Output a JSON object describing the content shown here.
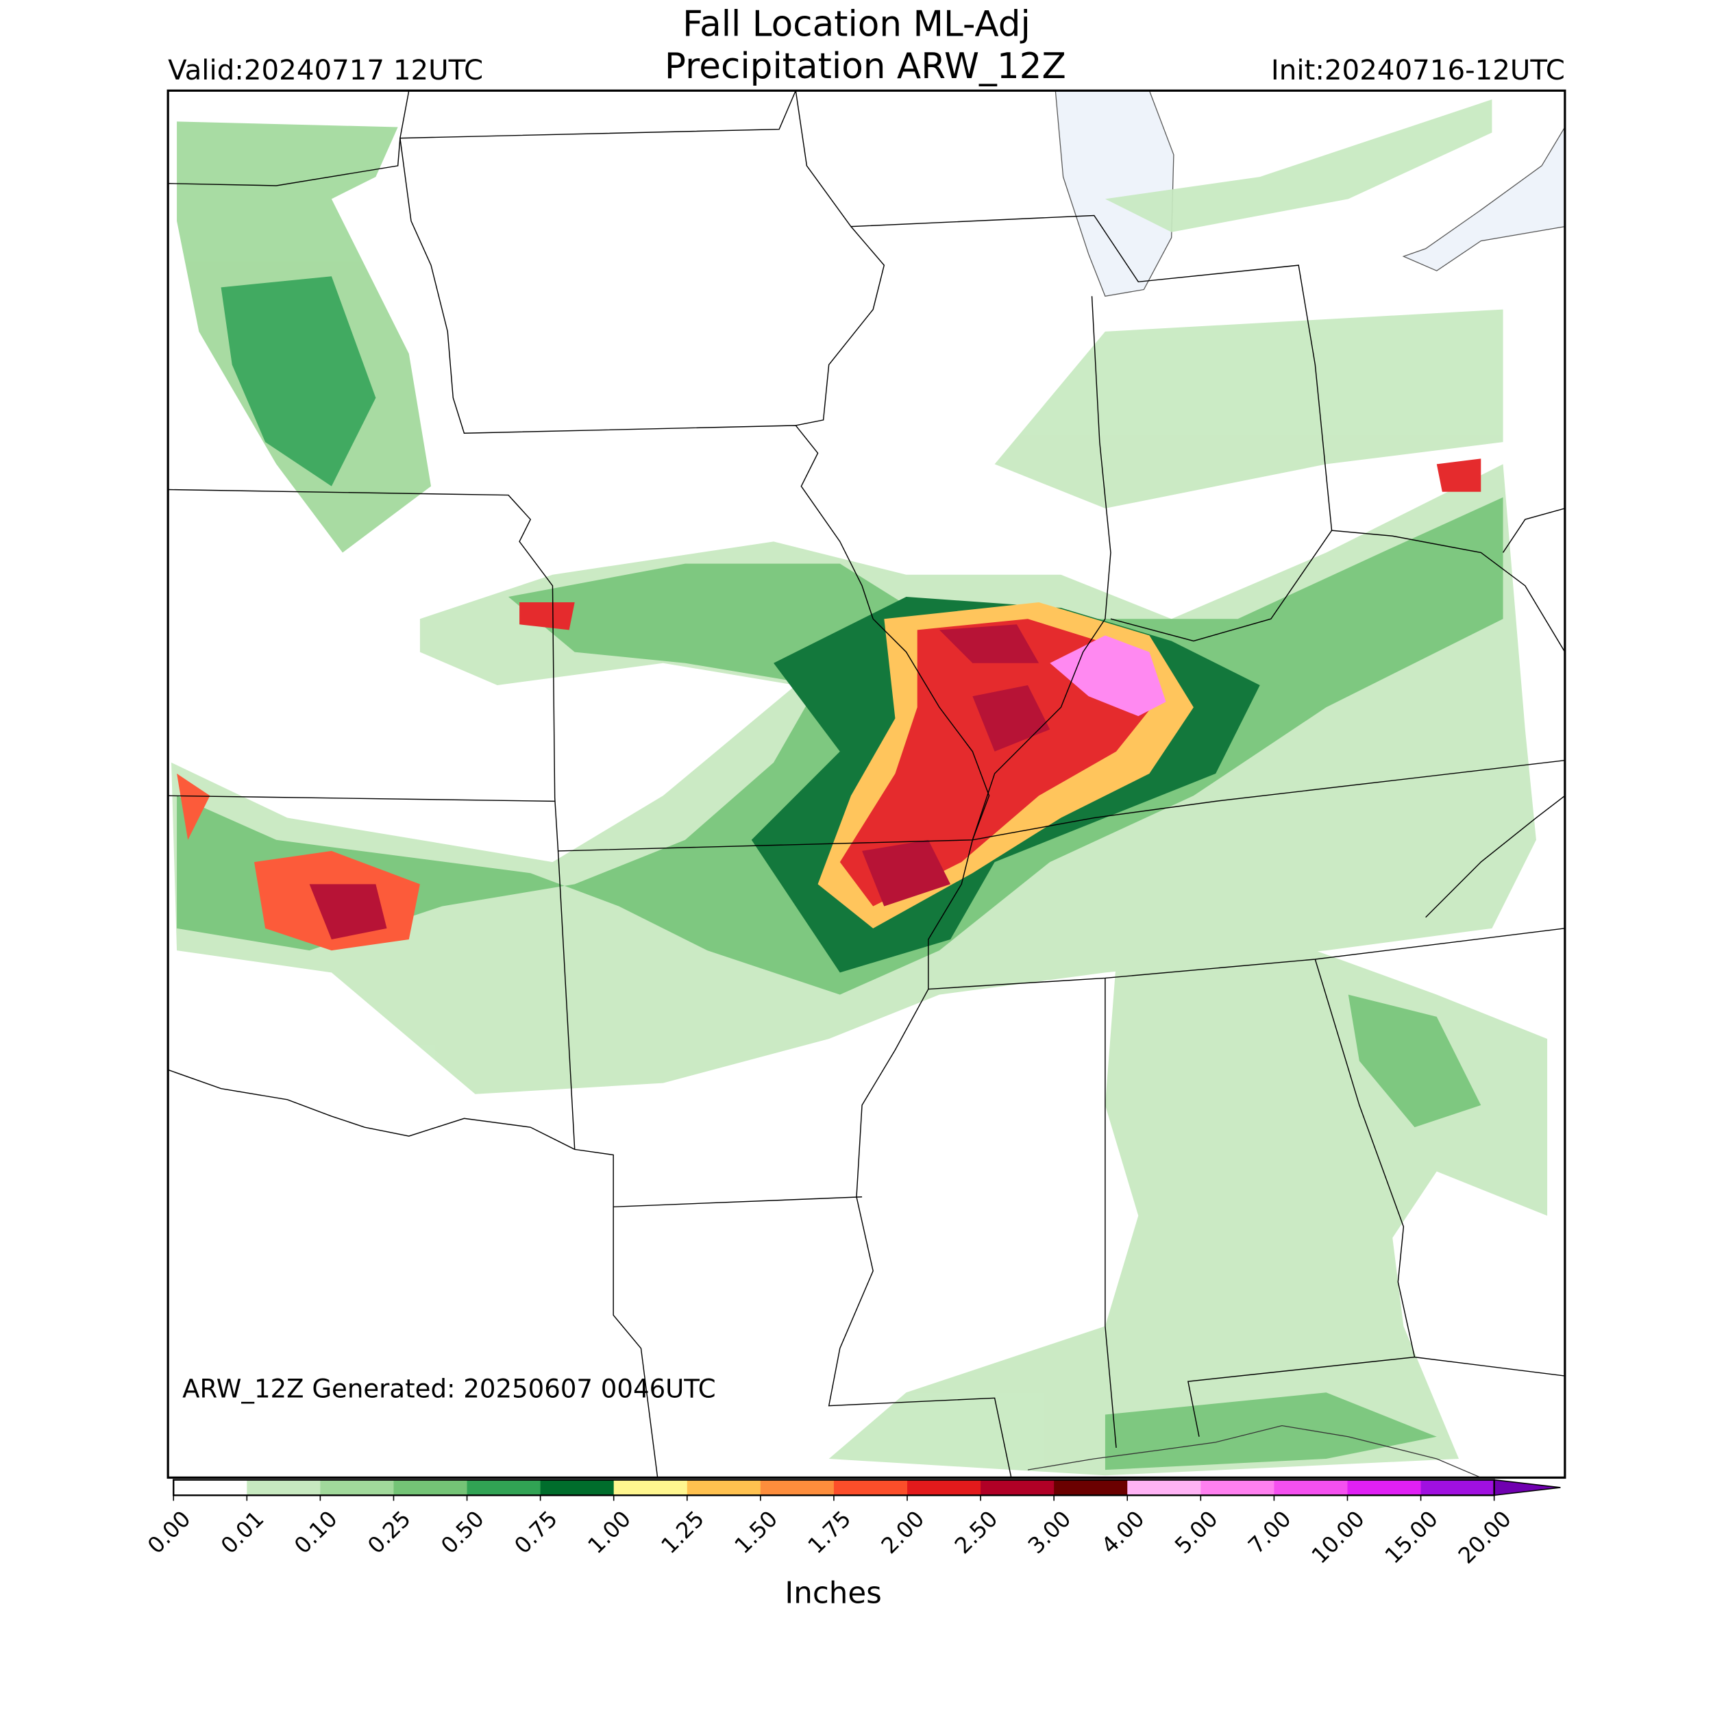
{
  "header": {
    "title_lines": [
      "Fall Location ML-Adj",
      "Precipitation ARW_12Z"
    ],
    "valid": "Valid:20240717 12UTC",
    "init": "Init:20240716-12UTC"
  },
  "annotation": "ARW_12Z Generated: 20250607 0046UTC",
  "colorbar": {
    "label": "Inches",
    "ticks": [
      {
        "value": 0,
        "label": "0.00"
      },
      {
        "value": 0.01,
        "label": "0.01"
      },
      {
        "value": 0.1,
        "label": "0.10"
      },
      {
        "value": 0.25,
        "label": "0.25"
      },
      {
        "value": 0.5,
        "label": "0.50"
      },
      {
        "value": 0.75,
        "label": "0.75"
      },
      {
        "value": 1,
        "label": "1.00"
      },
      {
        "value": 1.25,
        "label": "1.25"
      },
      {
        "value": 1.5,
        "label": "1.50"
      },
      {
        "value": 1.75,
        "label": "1.75"
      },
      {
        "value": 2,
        "label": "2.00"
      },
      {
        "value": 2.5,
        "label": "2.50"
      },
      {
        "value": 3,
        "label": "3.00"
      },
      {
        "value": 4,
        "label": "4.00"
      },
      {
        "value": 5,
        "label": "5.00"
      },
      {
        "value": 7,
        "label": "7.00"
      },
      {
        "value": 10,
        "label": "10.00"
      },
      {
        "value": 15,
        "label": "15.00"
      },
      {
        "value": 20,
        "label": "20.00"
      }
    ],
    "colors": [
      "#ffffff",
      "#c7e9c0",
      "#a1d99b",
      "#74c476",
      "#31a354",
      "#006d2c",
      "#fff68f",
      "#ffc14f",
      "#fd8d3c",
      "#fc4e2a",
      "#e31a1c",
      "#b10026",
      "#6b0000",
      "#ffb3f5",
      "#ff80f0",
      "#f550f0",
      "#e020f5",
      "#a010e0"
    ],
    "extend_color": "#7000b0"
  }
}
